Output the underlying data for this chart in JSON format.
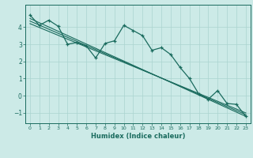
{
  "xlabel": "Humidex (Indice chaleur)",
  "bg_color": "#cceae7",
  "grid_color": "#aad4d0",
  "line_color": "#1a6b5e",
  "xlim": [
    -0.5,
    23.5
  ],
  "ylim": [
    -1.6,
    5.3
  ],
  "xticks": [
    0,
    1,
    2,
    3,
    4,
    5,
    6,
    7,
    8,
    9,
    10,
    11,
    12,
    13,
    14,
    15,
    16,
    17,
    18,
    19,
    20,
    21,
    22,
    23
  ],
  "yticks": [
    -1,
    0,
    1,
    2,
    3,
    4
  ],
  "series1_x": [
    0,
    1,
    2,
    3,
    4,
    5,
    6,
    7,
    8,
    9,
    10,
    11,
    12,
    13,
    14,
    15,
    16,
    17,
    18,
    19,
    20,
    21,
    22,
    23
  ],
  "series1_y": [
    4.7,
    4.1,
    4.4,
    4.05,
    3.0,
    3.1,
    2.9,
    2.2,
    3.05,
    3.2,
    4.1,
    3.8,
    3.5,
    2.65,
    2.8,
    2.4,
    1.65,
    1.0,
    0.1,
    -0.2,
    0.3,
    -0.45,
    -0.5,
    -1.2
  ],
  "trend1_x": [
    0,
    23
  ],
  "trend1_y": [
    4.5,
    -1.2
  ],
  "trend2_x": [
    0,
    23
  ],
  "trend2_y": [
    4.35,
    -1.1
  ],
  "trend3_x": [
    0,
    23
  ],
  "trend3_y": [
    4.2,
    -1.0
  ]
}
